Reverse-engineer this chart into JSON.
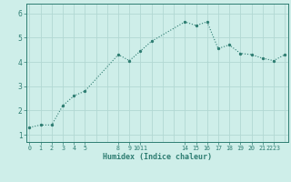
{
  "x": [
    0,
    1,
    2,
    3,
    4,
    5,
    8,
    9,
    10,
    11,
    14,
    15,
    16,
    17,
    18,
    19,
    20,
    21,
    22,
    23
  ],
  "y": [
    1.3,
    1.4,
    1.4,
    2.2,
    2.6,
    2.8,
    4.3,
    4.05,
    4.45,
    4.85,
    5.65,
    5.5,
    5.65,
    4.55,
    4.7,
    4.35,
    4.3,
    4.15,
    4.05,
    4.3
  ],
  "yticks": [
    1,
    2,
    3,
    4,
    5,
    6
  ],
  "ylim": [
    0.7,
    6.4
  ],
  "xlim": [
    -0.3,
    23.3
  ],
  "xlabel": "Humidex (Indice chaleur)",
  "line_color": "#2e7d72",
  "marker_color": "#2e7d72",
  "bg_color": "#ceeee9",
  "grid_color": "#b2d8d3",
  "axis_color": "#2e7d72",
  "tick_label_color": "#2e7d72",
  "figsize": [
    3.2,
    2.0
  ],
  "dpi": 100
}
